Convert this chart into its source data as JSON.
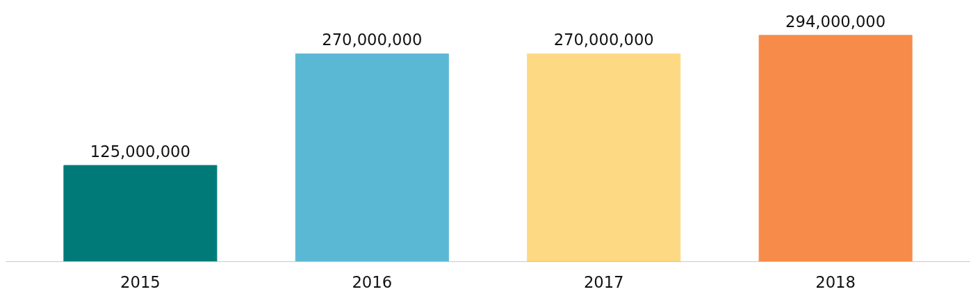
{
  "chart_data": {
    "type": "bar",
    "categories": [
      "2015",
      "2016",
      "2017",
      "2018"
    ],
    "values": [
      125000000,
      270000000,
      270000000,
      294000000
    ],
    "colors": [
      "#007a78",
      "#5bb8d4",
      "#fcd982",
      "#f68b4a"
    ],
    "value_labels": [
      "125,000,000",
      "270,000,000",
      "270,000,000",
      "294,000,000"
    ],
    "grid": false
  }
}
